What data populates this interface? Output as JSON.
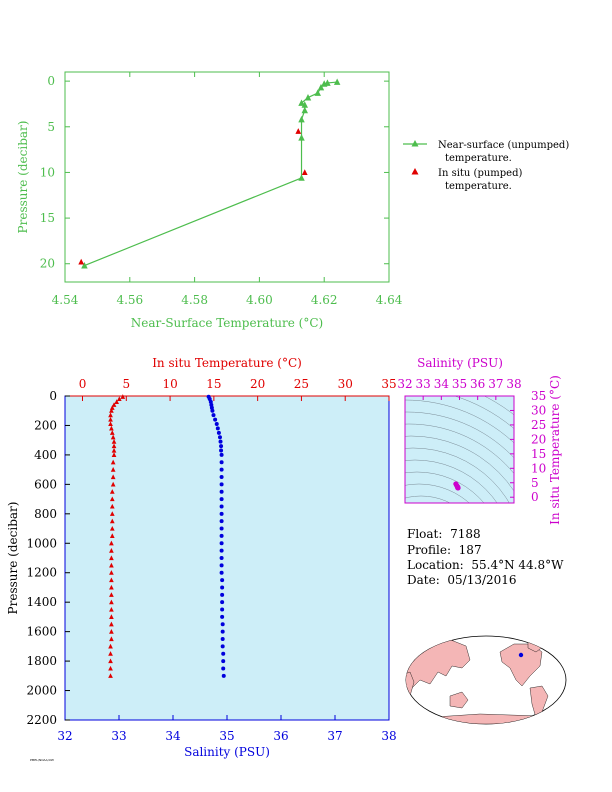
{
  "info": {
    "float_label": "Float:",
    "float_value": "7188",
    "profile_label": "Profile:",
    "profile_value": "187",
    "location_label": "Location:",
    "location_value": "55.4°N  44.8°W",
    "date_label": "Date:",
    "date_value": "05/13/2016"
  },
  "colors": {
    "near_surface": "#4dbd4d",
    "in_situ_temp": "#e00000",
    "salinity": "#0000dd",
    "magenta": "#cc00cc",
    "plot_bg": "#cdeef8"
  },
  "chart_data": [
    {
      "id": "near_surface",
      "type": "line",
      "xlabel": "Near-Surface Temperature (°C)",
      "ylabel": "Pressure (decibar)",
      "xlim": [
        4.54,
        4.64
      ],
      "ylim": [
        22,
        -1
      ],
      "xticks": [
        4.54,
        4.56,
        4.58,
        4.6,
        4.62,
        4.64
      ],
      "xtick_labels": [
        "4.54",
        "4.56",
        "4.58",
        "4.60",
        "4.62",
        "4.64"
      ],
      "yticks": [
        0,
        5,
        10,
        15,
        20
      ],
      "ytick_labels": [
        "0",
        "5",
        "10",
        "15",
        "20"
      ],
      "legend_position": "right",
      "series": [
        {
          "name": "Near-surface (unpumped) temperature.",
          "legend_line1": "Near-surface (unpumped)",
          "legend_line2": "temperature.",
          "marker": "triangle-line",
          "x": [
            4.546,
            4.613,
            4.613,
            4.613,
            4.614,
            4.614,
            4.613,
            4.615,
            4.618,
            4.619,
            4.62,
            4.621,
            4.624
          ],
          "y": [
            20.2,
            10.6,
            6.2,
            4.2,
            3.2,
            2.6,
            2.4,
            1.8,
            1.3,
            0.7,
            0.3,
            0.2,
            0.1
          ]
        },
        {
          "name": "In situ (pumped) temperature.",
          "legend_line1": "In situ (pumped)",
          "legend_line2": "temperature.",
          "marker": "triangle",
          "x": [
            4.545,
            4.612,
            4.614
          ],
          "y": [
            19.8,
            5.5,
            10.0
          ]
        }
      ]
    },
    {
      "id": "profile",
      "type": "scatter",
      "title": "In situ Temperature (°C)",
      "xlabel": "Salinity (PSU)",
      "ylabel": "Pressure (decibar)",
      "temp_lim": [
        -2,
        35
      ],
      "sal_lim": [
        32,
        38
      ],
      "ylim": [
        2200,
        0
      ],
      "temp_ticks": [
        0,
        5,
        10,
        15,
        20,
        25,
        30,
        35
      ],
      "temp_tick_labels": [
        "0",
        "5",
        "10",
        "15",
        "20",
        "25",
        "30",
        "35"
      ],
      "sal_ticks": [
        32,
        33,
        34,
        35,
        36,
        37,
        38
      ],
      "sal_tick_labels": [
        "32",
        "33",
        "34",
        "35",
        "36",
        "37",
        "38"
      ],
      "yticks": [
        0,
        200,
        400,
        600,
        800,
        1000,
        1200,
        1400,
        1600,
        1800,
        2000,
        2200
      ],
      "ytick_labels": [
        "0",
        "200",
        "400",
        "600",
        "800",
        "1000",
        "1200",
        "1400",
        "1600",
        "1800",
        "2000",
        "2200"
      ],
      "temperature": {
        "pressure": [
          5,
          20,
          40,
          60,
          80,
          100,
          130,
          160,
          190,
          220,
          250,
          280,
          310,
          340,
          370,
          400,
          450,
          500,
          550,
          600,
          650,
          700,
          750,
          800,
          850,
          900,
          950,
          1000,
          1050,
          1100,
          1150,
          1200,
          1250,
          1300,
          1350,
          1400,
          1450,
          1500,
          1550,
          1600,
          1650,
          1700,
          1750,
          1800,
          1850,
          1900
        ],
        "values": [
          4.6,
          4.2,
          3.9,
          3.6,
          3.4,
          3.3,
          3.2,
          3.2,
          3.2,
          3.3,
          3.4,
          3.5,
          3.6,
          3.6,
          3.6,
          3.6,
          3.5,
          3.5,
          3.5,
          3.5,
          3.4,
          3.4,
          3.4,
          3.4,
          3.4,
          3.4,
          3.4,
          3.3,
          3.3,
          3.3,
          3.3,
          3.3,
          3.3,
          3.3,
          3.3,
          3.3,
          3.3,
          3.3,
          3.3,
          3.3,
          3.3,
          3.2,
          3.2,
          3.2,
          3.2,
          3.2
        ]
      },
      "salinity": {
        "pressure": [
          5,
          20,
          40,
          60,
          80,
          100,
          130,
          160,
          190,
          220,
          250,
          280,
          310,
          340,
          370,
          400,
          450,
          500,
          550,
          600,
          650,
          700,
          750,
          800,
          850,
          900,
          950,
          1000,
          1050,
          1100,
          1150,
          1200,
          1250,
          1300,
          1350,
          1400,
          1450,
          1500,
          1550,
          1600,
          1650,
          1700,
          1750,
          1800,
          1850,
          1900
        ],
        "values": [
          34.66,
          34.68,
          34.7,
          34.71,
          34.72,
          34.73,
          34.75,
          34.78,
          34.81,
          34.83,
          34.85,
          34.87,
          34.88,
          34.89,
          34.89,
          34.9,
          34.9,
          34.9,
          34.9,
          34.9,
          34.9,
          34.9,
          34.9,
          34.9,
          34.9,
          34.9,
          34.9,
          34.9,
          34.9,
          34.9,
          34.9,
          34.9,
          34.91,
          34.91,
          34.91,
          34.91,
          34.91,
          34.91,
          34.92,
          34.92,
          34.92,
          34.92,
          34.93,
          34.93,
          34.93,
          34.94
        ]
      }
    },
    {
      "id": "ts_diagram",
      "type": "scatter",
      "title": "Salinity (PSU)",
      "ylabel": "In situ Temperature (°C)",
      "xlim": [
        32,
        38
      ],
      "ylim": [
        -2,
        35
      ],
      "xticks": [
        32,
        33,
        34,
        35,
        36,
        37,
        38
      ],
      "xtick_labels": [
        "32",
        "33",
        "34",
        "35",
        "36",
        "37",
        "38"
      ],
      "yticks": [
        0,
        5,
        10,
        15,
        20,
        25,
        30,
        35
      ],
      "ytick_labels": [
        "0",
        "5",
        "10",
        "15",
        "20",
        "25",
        "30",
        "35"
      ],
      "points": {
        "salinity": [
          34.8,
          34.85,
          34.9,
          34.9,
          34.9,
          34.92
        ],
        "temperature": [
          4.6,
          4.0,
          3.6,
          3.4,
          3.3,
          3.2
        ]
      }
    }
  ],
  "map": {
    "float_lat": 55.4,
    "float_lon": -44.8
  },
  "footer": {
    "text": "PMEL/NOAA/UW"
  }
}
